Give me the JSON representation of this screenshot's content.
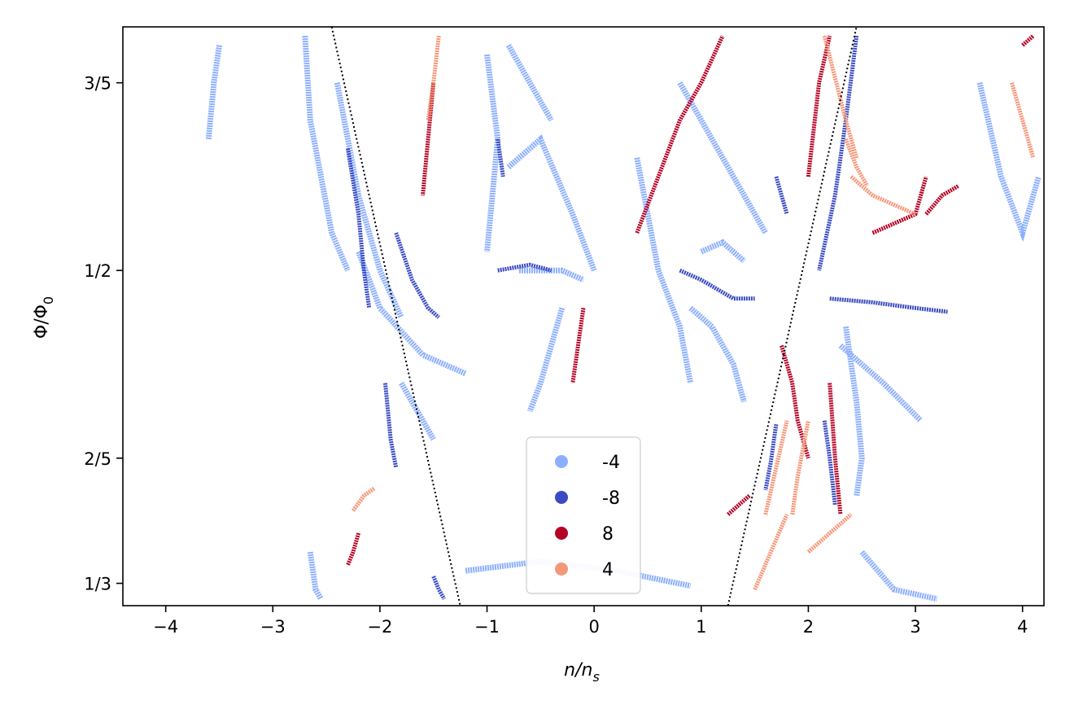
{
  "chart_data": {
    "type": "scatter",
    "title": "",
    "xlabel_main": "n/n",
    "xlabel_sub": "s",
    "ylabel_main": "Φ/Φ",
    "ylabel_sub": "0",
    "xlim": [
      -4.4,
      4.2
    ],
    "ylim": [
      0.3214,
      0.6298
    ],
    "grid": false,
    "legend_position": "bottom-center",
    "x_ticks": [
      {
        "value": -4,
        "label": "−4"
      },
      {
        "value": -3,
        "label": "−3"
      },
      {
        "value": -2,
        "label": "−2"
      },
      {
        "value": -1,
        "label": "−1"
      },
      {
        "value": 0,
        "label": "0"
      },
      {
        "value": 1,
        "label": "1"
      },
      {
        "value": 2,
        "label": "2"
      },
      {
        "value": 3,
        "label": "3"
      },
      {
        "value": 4,
        "label": "4"
      }
    ],
    "y_ticks": [
      {
        "value": 0.3333,
        "label": "1/3"
      },
      {
        "value": 0.4,
        "label": "2/5"
      },
      {
        "value": 0.5,
        "label": "1/2"
      },
      {
        "value": 0.6,
        "label": "3/5"
      }
    ],
    "series": [
      {
        "name": "-4",
        "color": "#8db0fe",
        "segments": [
          [
            [
              -2.7,
              0.625
            ],
            [
              -2.65,
              0.58
            ],
            [
              -2.55,
              0.55
            ],
            [
              -2.45,
              0.52
            ],
            [
              -2.3,
              0.5
            ]
          ],
          [
            [
              -2.4,
              0.6
            ],
            [
              -2.2,
              0.54
            ],
            [
              -2.0,
              0.5
            ],
            [
              -1.8,
              0.475
            ]
          ],
          [
            [
              -2.2,
              0.51
            ],
            [
              -2.0,
              0.48
            ],
            [
              -1.6,
              0.455
            ],
            [
              -1.2,
              0.445
            ]
          ],
          [
            [
              -1.8,
              0.44
            ],
            [
              -1.6,
              0.42
            ],
            [
              -1.5,
              0.41
            ]
          ],
          [
            [
              -1.0,
              0.615
            ],
            [
              -0.9,
              0.57
            ],
            [
              -0.95,
              0.54
            ],
            [
              -1.0,
              0.51
            ]
          ],
          [
            [
              -0.8,
              0.62
            ],
            [
              -0.6,
              0.6
            ],
            [
              -0.4,
              0.58
            ]
          ],
          [
            [
              -0.8,
              0.555
            ],
            [
              -0.5,
              0.57
            ],
            [
              -0.2,
              0.53
            ],
            [
              0.0,
              0.5
            ]
          ],
          [
            [
              -0.7,
              0.5
            ],
            [
              -0.3,
              0.5
            ],
            [
              -0.1,
              0.495
            ]
          ],
          [
            [
              -0.3,
              0.48
            ],
            [
              -0.5,
              0.44
            ],
            [
              -0.6,
              0.425
            ]
          ],
          [
            [
              0.4,
              0.56
            ],
            [
              0.6,
              0.5
            ],
            [
              0.8,
              0.47
            ],
            [
              0.9,
              0.44
            ]
          ],
          [
            [
              0.8,
              0.6
            ],
            [
              1.0,
              0.58
            ],
            [
              1.3,
              0.55
            ],
            [
              1.6,
              0.52
            ]
          ],
          [
            [
              1.0,
              0.51
            ],
            [
              1.2,
              0.515
            ],
            [
              1.4,
              0.505
            ]
          ],
          [
            [
              0.9,
              0.48
            ],
            [
              1.1,
              0.47
            ],
            [
              1.3,
              0.45
            ],
            [
              1.4,
              0.43
            ]
          ],
          [
            [
              2.35,
              0.47
            ],
            [
              2.45,
              0.43
            ],
            [
              2.5,
              0.4
            ],
            [
              2.45,
              0.38
            ]
          ],
          [
            [
              2.3,
              0.46
            ],
            [
              2.7,
              0.44
            ],
            [
              3.05,
              0.42
            ]
          ],
          [
            [
              2.5,
              0.35
            ],
            [
              2.8,
              0.33
            ],
            [
              3.2,
              0.325
            ]
          ],
          [
            [
              -1.2,
              0.34
            ],
            [
              -0.5,
              0.345
            ],
            [
              0.2,
              0.34
            ],
            [
              0.9,
              0.332
            ]
          ],
          [
            [
              3.6,
              0.6
            ],
            [
              3.8,
              0.55
            ],
            [
              4.0,
              0.52
            ],
            [
              4.15,
              0.55
            ]
          ],
          [
            [
              -3.5,
              0.62
            ],
            [
              -3.55,
              0.6
            ],
            [
              -3.6,
              0.57
            ]
          ],
          [
            [
              -2.65,
              0.35
            ],
            [
              -2.6,
              0.33
            ],
            [
              -2.55,
              0.325
            ]
          ]
        ]
      },
      {
        "name": "-8",
        "color": "#3b4cc0",
        "segments": [
          [
            [
              -2.3,
              0.565
            ],
            [
              -2.2,
              0.53
            ],
            [
              -2.15,
              0.5
            ],
            [
              -2.1,
              0.48
            ]
          ],
          [
            [
              -1.85,
              0.52
            ],
            [
              -1.7,
              0.495
            ],
            [
              -1.55,
              0.48
            ],
            [
              -1.45,
              0.475
            ]
          ],
          [
            [
              -1.95,
              0.44
            ],
            [
              -1.9,
              0.41
            ],
            [
              -1.85,
              0.395
            ]
          ],
          [
            [
              -1.5,
              0.337
            ],
            [
              -1.45,
              0.33
            ],
            [
              -1.4,
              0.325
            ]
          ],
          [
            [
              -0.9,
              0.57
            ],
            [
              -0.85,
              0.55
            ]
          ],
          [
            [
              -0.9,
              0.5
            ],
            [
              -0.6,
              0.503
            ],
            [
              -0.4,
              0.5
            ]
          ],
          [
            [
              0.8,
              0.5
            ],
            [
              1.0,
              0.495
            ],
            [
              1.3,
              0.485
            ],
            [
              1.5,
              0.485
            ]
          ],
          [
            [
              2.2,
              0.485
            ],
            [
              2.6,
              0.483
            ],
            [
              3.0,
              0.48
            ],
            [
              3.3,
              0.478
            ]
          ],
          [
            [
              2.15,
              0.42
            ],
            [
              2.2,
              0.4
            ],
            [
              2.25,
              0.375
            ]
          ],
          [
            [
              1.7,
              0.418
            ],
            [
              1.65,
              0.398
            ],
            [
              1.6,
              0.383
            ]
          ],
          [
            [
              2.45,
              0.625
            ],
            [
              2.35,
              0.58
            ],
            [
              2.25,
              0.54
            ],
            [
              2.1,
              0.5
            ]
          ],
          [
            [
              1.7,
              0.55
            ],
            [
              1.8,
              0.53
            ]
          ]
        ]
      },
      {
        "name": "8",
        "color": "#b40426",
        "segments": [
          [
            [
              -1.5,
              0.6
            ],
            [
              -1.55,
              0.57
            ],
            [
              -1.6,
              0.54
            ]
          ],
          [
            [
              -0.1,
              0.48
            ],
            [
              -0.15,
              0.46
            ],
            [
              -0.2,
              0.44
            ]
          ],
          [
            [
              0.4,
              0.52
            ],
            [
              0.6,
              0.55
            ],
            [
              0.8,
              0.58
            ],
            [
              1.0,
              0.6
            ],
            [
              1.2,
              0.625
            ]
          ],
          [
            [
              1.75,
              0.46
            ],
            [
              1.85,
              0.44
            ],
            [
              1.9,
              0.42
            ],
            [
              2.0,
              0.4
            ]
          ],
          [
            [
              2.0,
              0.55
            ],
            [
              2.1,
              0.6
            ],
            [
              2.2,
              0.625
            ]
          ],
          [
            [
              2.2,
              0.44
            ],
            [
              2.25,
              0.4
            ],
            [
              2.3,
              0.37
            ]
          ],
          [
            [
              2.6,
              0.52
            ],
            [
              2.8,
              0.525
            ],
            [
              3.0,
              0.53
            ],
            [
              3.1,
              0.55
            ]
          ],
          [
            [
              3.1,
              0.53
            ],
            [
              3.25,
              0.54
            ],
            [
              3.4,
              0.545
            ]
          ],
          [
            [
              -2.2,
              0.36
            ],
            [
              -2.25,
              0.35
            ],
            [
              -2.3,
              0.343
            ]
          ],
          [
            [
              1.25,
              0.37
            ],
            [
              1.35,
              0.375
            ],
            [
              1.45,
              0.38
            ]
          ],
          [
            [
              4.0,
              0.62
            ],
            [
              4.1,
              0.625
            ]
          ]
        ]
      },
      {
        "name": "4",
        "color": "#f4987a",
        "segments": [
          [
            [
              -2.25,
              0.372
            ],
            [
              -2.15,
              0.38
            ],
            [
              -2.05,
              0.384
            ]
          ],
          [
            [
              -1.45,
              0.625
            ],
            [
              -1.5,
              0.6
            ],
            [
              -1.55,
              0.58
            ]
          ],
          [
            [
              2.15,
              0.625
            ],
            [
              2.35,
              0.58
            ],
            [
              2.45,
              0.56
            ]
          ],
          [
            [
              2.4,
              0.55
            ],
            [
              2.6,
              0.54
            ],
            [
              2.8,
              0.535
            ],
            [
              3.0,
              0.53
            ]
          ],
          [
            [
              2.35,
              0.57
            ],
            [
              2.45,
              0.555
            ],
            [
              2.55,
              0.545
            ]
          ],
          [
            [
              1.6,
              0.37
            ],
            [
              1.7,
              0.395
            ],
            [
              1.8,
              0.42
            ]
          ],
          [
            [
              1.85,
              0.37
            ],
            [
              1.9,
              0.39
            ],
            [
              2.0,
              0.42
            ]
          ],
          [
            [
              1.5,
              0.33
            ],
            [
              1.65,
              0.35
            ],
            [
              1.8,
              0.37
            ]
          ],
          [
            [
              3.9,
              0.6
            ],
            [
              4.0,
              0.58
            ],
            [
              4.1,
              0.56
            ]
          ],
          [
            [
              2.0,
              0.35
            ],
            [
              2.2,
              0.36
            ],
            [
              2.4,
              0.37
            ]
          ]
        ]
      }
    ],
    "guide_lines": [
      {
        "name": "left-dotted-guide",
        "from": [
          -2.45,
          0.6298
        ],
        "to": [
          -1.25,
          0.3214
        ]
      },
      {
        "name": "right-dotted-guide",
        "from": [
          1.25,
          0.3214
        ],
        "to": [
          2.45,
          0.6298
        ]
      }
    ]
  }
}
